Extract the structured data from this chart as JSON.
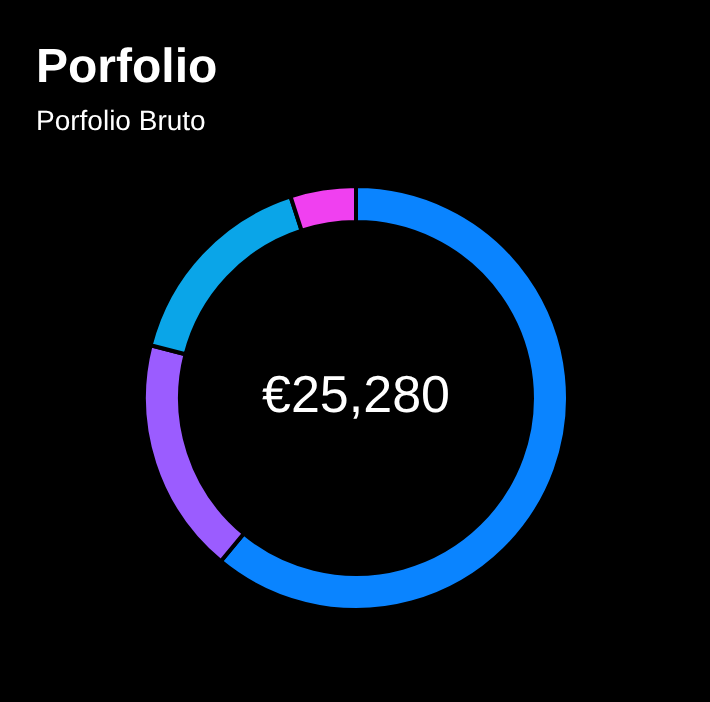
{
  "chart_data": {
    "type": "donut",
    "title": "Porfolio",
    "subtitle": "Porfolio Bruto",
    "categories": [
      null,
      null,
      null,
      null
    ],
    "values": [
      61,
      18,
      16,
      5
    ],
    "colors": [
      "#0a84ff",
      "#9b5cff",
      "#0aa5e8",
      "#f040f0"
    ],
    "annotations": [
      "€25,280"
    ],
    "legend": false
  }
}
